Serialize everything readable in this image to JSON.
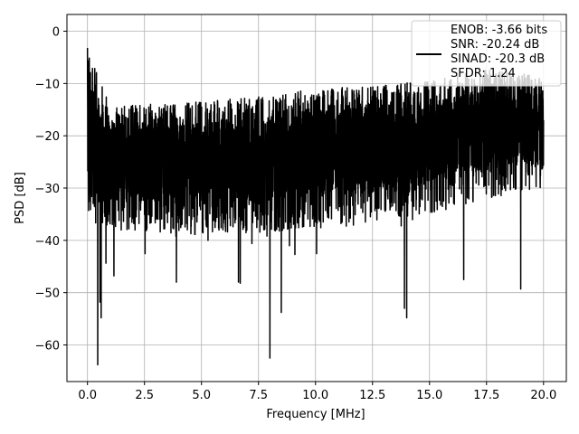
{
  "chart_data": {
    "type": "line",
    "title": "",
    "xlabel": "Frequency [MHz]",
    "ylabel": "PSD [dB]",
    "xlim": [
      -0.9,
      21.0
    ],
    "ylim": [
      -67.0,
      3.2
    ],
    "xticks": [
      0.0,
      2.5,
      5.0,
      7.5,
      10.0,
      12.5,
      15.0,
      17.5,
      20.0
    ],
    "xtick_labels": [
      "0.0",
      "2.5",
      "5.0",
      "7.5",
      "10.0",
      "12.5",
      "15.0",
      "17.5",
      "20.0"
    ],
    "yticks": [
      0,
      -10,
      -20,
      -30,
      -40,
      -50,
      -60
    ],
    "ytick_labels": [
      "0",
      "−10",
      "−20",
      "−30",
      "−40",
      "−50",
      "−60"
    ],
    "grid": true,
    "legend_position": "top-right",
    "line_color": "#000000",
    "series": [
      {
        "legend_lines": [
          "ENOB: -3.66 bits",
          "SNR: -20.24 dB",
          "SINAD: -20.3 dB",
          "SFDR: 1.24"
        ],
        "x_range": [
          0.0,
          20.0
        ],
        "peak": {
          "x": 0.0,
          "y": -3.2
        },
        "envelope": [
          {
            "x": 0.0,
            "top": -3.2,
            "bottom": -36.5
          },
          {
            "x": 1.0,
            "top": -14.5,
            "bottom": -38.0
          },
          {
            "x": 2.5,
            "top": -14.0,
            "bottom": -38.5
          },
          {
            "x": 5.0,
            "top": -13.5,
            "bottom": -39.0
          },
          {
            "x": 7.5,
            "top": -12.5,
            "bottom": -38.5
          },
          {
            "x": 10.0,
            "top": -11.0,
            "bottom": -38.0
          },
          {
            "x": 12.5,
            "top": -10.5,
            "bottom": -37.0
          },
          {
            "x": 15.0,
            "top": -9.5,
            "bottom": -35.0
          },
          {
            "x": 17.5,
            "top": -7.0,
            "bottom": -32.0
          },
          {
            "x": 20.0,
            "top": -8.5,
            "bottom": -30.0
          }
        ],
        "notable_dips": [
          {
            "x": 0.45,
            "y": -63.8
          },
          {
            "x": 0.6,
            "y": -54.8
          },
          {
            "x": 0.55,
            "y": -51.8
          },
          {
            "x": 3.9,
            "y": -48.0
          },
          {
            "x": 6.7,
            "y": -48.2
          },
          {
            "x": 8.0,
            "y": -62.5
          },
          {
            "x": 8.5,
            "y": -53.8
          },
          {
            "x": 13.9,
            "y": -53.0
          },
          {
            "x": 14.0,
            "y": -54.8
          },
          {
            "x": 16.5,
            "y": -47.5
          },
          {
            "x": 19.0,
            "y": -49.3
          }
        ],
        "points": 4000
      }
    ]
  }
}
